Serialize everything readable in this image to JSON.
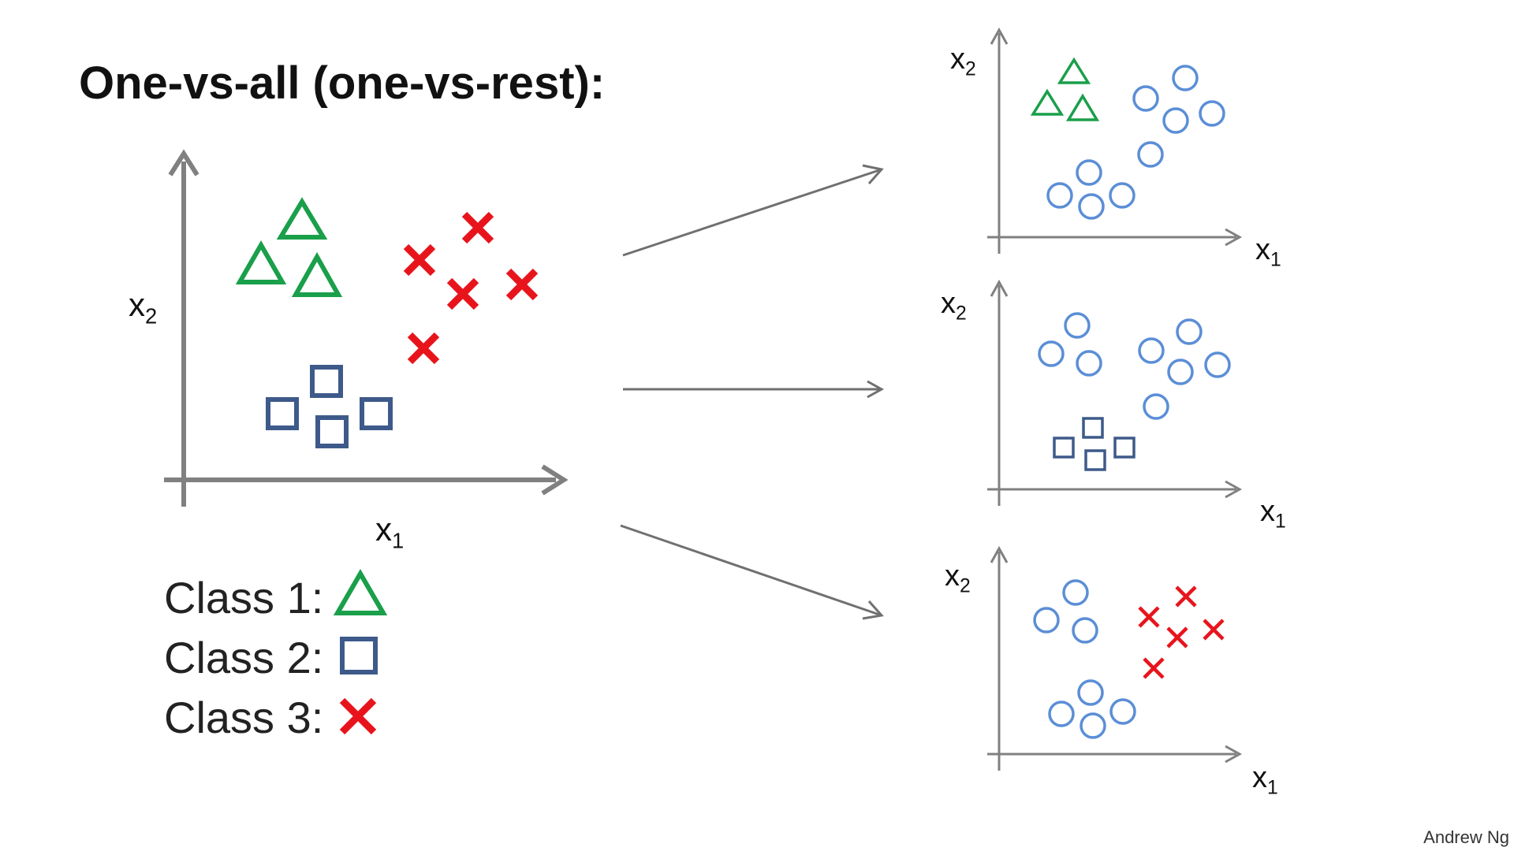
{
  "title": "One-vs-all (one-vs-rest):",
  "main_plot": {
    "xlabel": "x",
    "xlabel_sub": "1",
    "ylabel": "x",
    "ylabel_sub": "2"
  },
  "legend": [
    {
      "label": "Class 1:",
      "symbol": "triangle",
      "color": "#1a9f4a"
    },
    {
      "label": "Class 2:",
      "symbol": "square",
      "color": "#3d5a8a"
    },
    {
      "label": "Class 3:",
      "symbol": "cross",
      "color": "#e8141c"
    }
  ],
  "subplots": [
    {
      "highlight_class": "Class 1",
      "xlabel": "x",
      "xlabel_sub": "1",
      "ylabel": "x",
      "ylabel_sub": "2"
    },
    {
      "highlight_class": "Class 2",
      "xlabel": "x",
      "xlabel_sub": "1",
      "ylabel": "x",
      "ylabel_sub": "2"
    },
    {
      "highlight_class": "Class 3",
      "xlabel": "x",
      "xlabel_sub": "1",
      "ylabel": "x",
      "ylabel_sub": "2"
    }
  ],
  "colors": {
    "class1": "#1a9f4a",
    "class2": "#3d5a8a",
    "class3": "#e8141c",
    "rest": "#5b8ed6",
    "axis": "#808080"
  },
  "credit": "Andrew Ng"
}
